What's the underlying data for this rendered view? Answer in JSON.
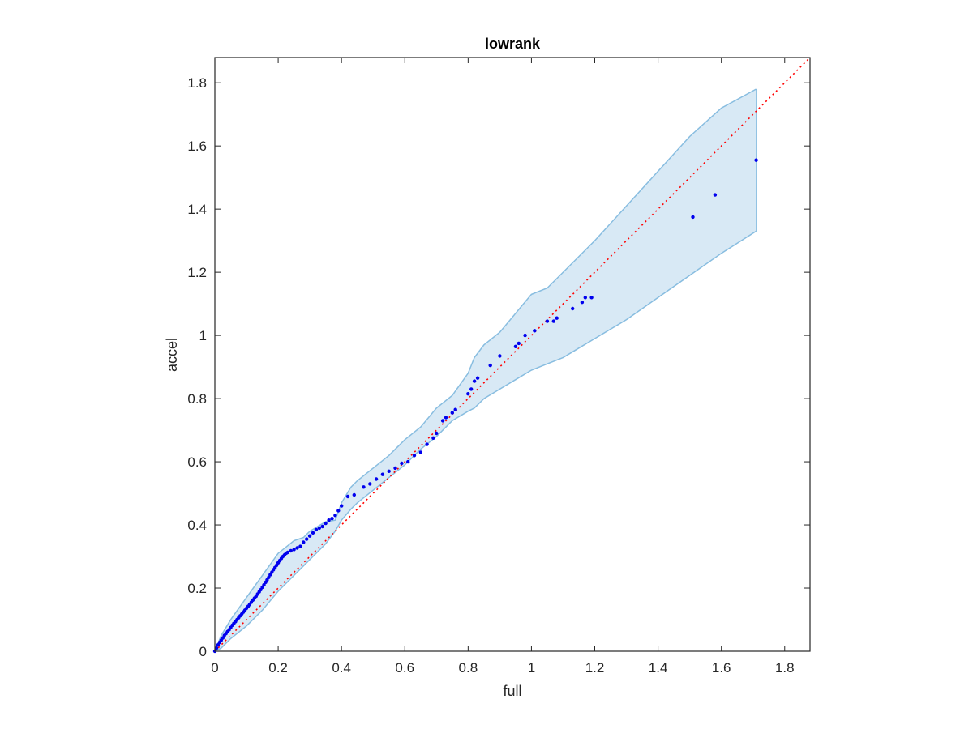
{
  "chart_data": {
    "type": "scatter",
    "title": "lowrank",
    "xlabel": "full",
    "ylabel": "accel",
    "xlim": [
      0,
      1.88
    ],
    "ylim": [
      0,
      1.88
    ],
    "xticks": [
      "0",
      "0.2",
      "0.4",
      "0.6",
      "0.8",
      "1",
      "1.2",
      "1.4",
      "1.6",
      "1.8"
    ],
    "yticks": [
      "0",
      "0.2",
      "0.4",
      "0.6",
      "0.8",
      "1",
      "1.2",
      "1.4",
      "1.6",
      "1.8"
    ],
    "xtick_values": [
      0,
      0.2,
      0.4,
      0.6,
      0.8,
      1.0,
      1.2,
      1.4,
      1.6,
      1.8
    ],
    "ytick_values": [
      0,
      0.2,
      0.4,
      0.6,
      0.8,
      1.0,
      1.2,
      1.4,
      1.6,
      1.8
    ],
    "grid": false,
    "colors": {
      "points": "#0000ee",
      "reference_line": "#ff0000",
      "band_fill": "#d8e9f5",
      "band_edge": "#88bde0",
      "axes": "#262626"
    },
    "reference_line": {
      "style": "dotted",
      "x": [
        0,
        1.88
      ],
      "y": [
        0,
        1.88
      ]
    },
    "band": {
      "x": [
        0,
        0.02,
        0.05,
        0.1,
        0.15,
        0.2,
        0.25,
        0.28,
        0.3,
        0.35,
        0.38,
        0.4,
        0.43,
        0.45,
        0.5,
        0.55,
        0.6,
        0.65,
        0.7,
        0.75,
        0.8,
        0.82,
        0.85,
        0.9,
        0.95,
        1.0,
        1.05,
        1.1,
        1.15,
        1.2,
        1.3,
        1.4,
        1.5,
        1.6,
        1.71
      ],
      "upper": [
        0.0,
        0.05,
        0.1,
        0.17,
        0.24,
        0.31,
        0.35,
        0.36,
        0.38,
        0.41,
        0.415,
        0.47,
        0.52,
        0.54,
        0.58,
        0.62,
        0.67,
        0.71,
        0.77,
        0.81,
        0.88,
        0.93,
        0.97,
        1.01,
        1.07,
        1.13,
        1.15,
        1.2,
        1.25,
        1.3,
        1.41,
        1.52,
        1.63,
        1.72,
        1.78
      ],
      "lower": [
        0.0,
        0.01,
        0.04,
        0.08,
        0.13,
        0.19,
        0.24,
        0.27,
        0.29,
        0.34,
        0.38,
        0.415,
        0.45,
        0.47,
        0.51,
        0.55,
        0.59,
        0.64,
        0.68,
        0.73,
        0.76,
        0.77,
        0.8,
        0.83,
        0.86,
        0.89,
        0.91,
        0.93,
        0.96,
        0.99,
        1.05,
        1.12,
        1.19,
        1.26,
        1.33
      ]
    },
    "points": {
      "x": [
        0.0,
        0.005,
        0.01,
        0.015,
        0.02,
        0.025,
        0.03,
        0.035,
        0.04,
        0.045,
        0.05,
        0.055,
        0.06,
        0.065,
        0.07,
        0.075,
        0.08,
        0.085,
        0.09,
        0.095,
        0.1,
        0.105,
        0.11,
        0.115,
        0.12,
        0.125,
        0.13,
        0.135,
        0.14,
        0.145,
        0.15,
        0.155,
        0.16,
        0.165,
        0.17,
        0.175,
        0.18,
        0.185,
        0.19,
        0.195,
        0.2,
        0.205,
        0.21,
        0.215,
        0.22,
        0.225,
        0.23,
        0.24,
        0.25,
        0.26,
        0.27,
        0.28,
        0.29,
        0.3,
        0.31,
        0.32,
        0.33,
        0.34,
        0.35,
        0.36,
        0.37,
        0.38,
        0.39,
        0.4,
        0.42,
        0.44,
        0.47,
        0.49,
        0.51,
        0.53,
        0.55,
        0.57,
        0.59,
        0.61,
        0.63,
        0.65,
        0.67,
        0.69,
        0.7,
        0.72,
        0.73,
        0.75,
        0.76,
        0.8,
        0.81,
        0.82,
        0.83,
        0.87,
        0.9,
        0.95,
        0.96,
        0.98,
        1.01,
        1.05,
        1.07,
        1.08,
        1.13,
        1.16,
        1.17,
        1.19,
        1.51,
        1.58,
        1.71
      ],
      "y": [
        0.0,
        0.01,
        0.02,
        0.028,
        0.035,
        0.042,
        0.05,
        0.056,
        0.062,
        0.068,
        0.075,
        0.082,
        0.088,
        0.094,
        0.1,
        0.106,
        0.112,
        0.118,
        0.124,
        0.13,
        0.136,
        0.142,
        0.148,
        0.155,
        0.162,
        0.168,
        0.174,
        0.181,
        0.188,
        0.195,
        0.203,
        0.21,
        0.218,
        0.226,
        0.234,
        0.242,
        0.25,
        0.258,
        0.265,
        0.272,
        0.28,
        0.287,
        0.294,
        0.3,
        0.305,
        0.31,
        0.313,
        0.318,
        0.322,
        0.327,
        0.332,
        0.345,
        0.355,
        0.365,
        0.375,
        0.385,
        0.39,
        0.395,
        0.405,
        0.415,
        0.42,
        0.43,
        0.445,
        0.46,
        0.49,
        0.495,
        0.52,
        0.53,
        0.545,
        0.56,
        0.57,
        0.58,
        0.595,
        0.6,
        0.62,
        0.63,
        0.655,
        0.675,
        0.69,
        0.73,
        0.74,
        0.755,
        0.765,
        0.815,
        0.83,
        0.855,
        0.865,
        0.905,
        0.935,
        0.965,
        0.975,
        1.0,
        1.015,
        1.045,
        1.045,
        1.055,
        1.085,
        1.105,
        1.12,
        1.12,
        1.375,
        1.445,
        1.555
      ]
    }
  }
}
